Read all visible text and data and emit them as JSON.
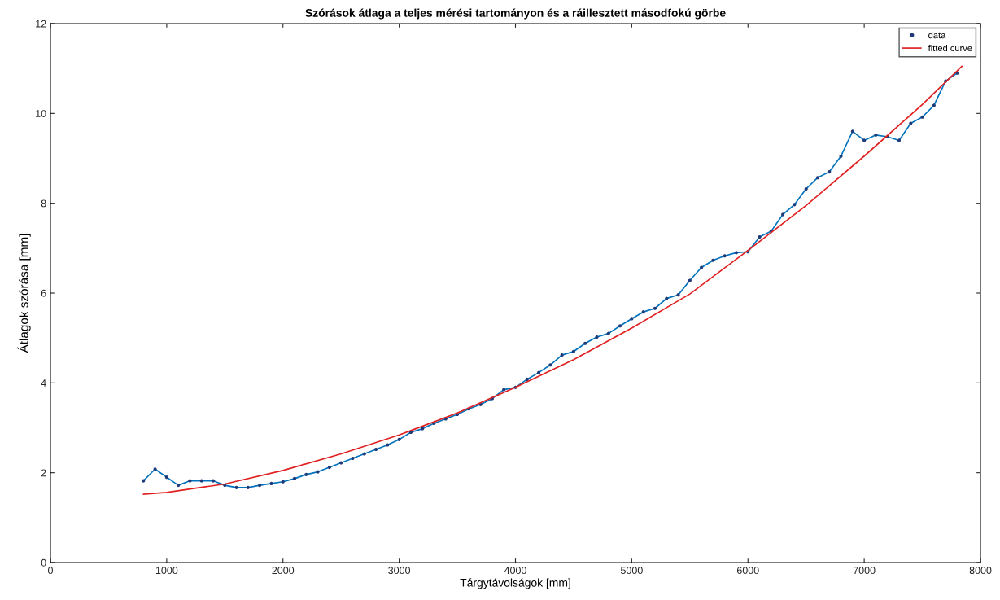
{
  "chart_data": {
    "type": "line",
    "title": "Szórások átlaga a teljes mérési tartományon és a ráillesztett másodfokú görbe",
    "xlabel": "Tárgytávolságok [mm]",
    "ylabel": "Átlagok szórása [mm]",
    "xlim": [
      0,
      8000
    ],
    "xticks": [
      0,
      1000,
      2000,
      3000,
      4000,
      5000,
      6000,
      7000,
      8000
    ],
    "ylim": [
      0,
      12
    ],
    "yticks": [
      0,
      2,
      4,
      6,
      8,
      10,
      12
    ],
    "grid": false,
    "legend": "top right",
    "series": [
      {
        "name": "data",
        "marker": "circle",
        "color": "#0072bd",
        "x": [
          800,
          900,
          1000,
          1100,
          1200,
          1300,
          1400,
          1500,
          1600,
          1700,
          1800,
          1900,
          2000,
          2100,
          2200,
          2300,
          2400,
          2500,
          2600,
          2700,
          2800,
          2900,
          3000,
          3100,
          3200,
          3300,
          3400,
          3500,
          3600,
          3700,
          3800,
          3900,
          4000,
          4100,
          4200,
          4300,
          4400,
          4500,
          4600,
          4700,
          4800,
          4900,
          5000,
          5100,
          5200,
          5300,
          5400,
          5500,
          5600,
          5700,
          5800,
          5900,
          6000,
          6100,
          6200,
          6300,
          6400,
          6500,
          6600,
          6700,
          6800,
          6900,
          7000,
          7100,
          7200,
          7300,
          7400,
          7500,
          7600,
          7700,
          7800
        ],
        "values": [
          1.82,
          2.08,
          1.9,
          1.72,
          1.82,
          1.82,
          1.82,
          1.72,
          1.67,
          1.67,
          1.72,
          1.76,
          1.8,
          1.87,
          1.96,
          2.02,
          2.12,
          2.22,
          2.32,
          2.42,
          2.52,
          2.62,
          2.74,
          2.9,
          2.98,
          3.1,
          3.2,
          3.3,
          3.42,
          3.52,
          3.65,
          3.85,
          3.9,
          4.08,
          4.23,
          4.4,
          4.62,
          4.7,
          4.88,
          5.02,
          5.1,
          5.27,
          5.43,
          5.58,
          5.66,
          5.88,
          5.96,
          6.28,
          6.57,
          6.73,
          6.83,
          6.9,
          6.92,
          7.25,
          7.38,
          7.75,
          7.97,
          8.32,
          8.57,
          8.7,
          9.05,
          9.6,
          9.4,
          9.52,
          9.48,
          9.4,
          9.78,
          9.92,
          10.18,
          10.72,
          10.9
        ]
      },
      {
        "name": "fitted curve",
        "marker": "none",
        "color": "#e02020",
        "x": [
          800,
          1000,
          1500,
          2000,
          2500,
          3000,
          3500,
          4000,
          4500,
          5000,
          5500,
          6000,
          6500,
          7000,
          7500,
          7840
        ],
        "values": [
          1.52,
          1.56,
          1.75,
          2.05,
          2.42,
          2.84,
          3.33,
          3.9,
          4.52,
          5.22,
          5.98,
          6.95,
          7.95,
          9.05,
          10.2,
          11.05
        ]
      }
    ]
  }
}
